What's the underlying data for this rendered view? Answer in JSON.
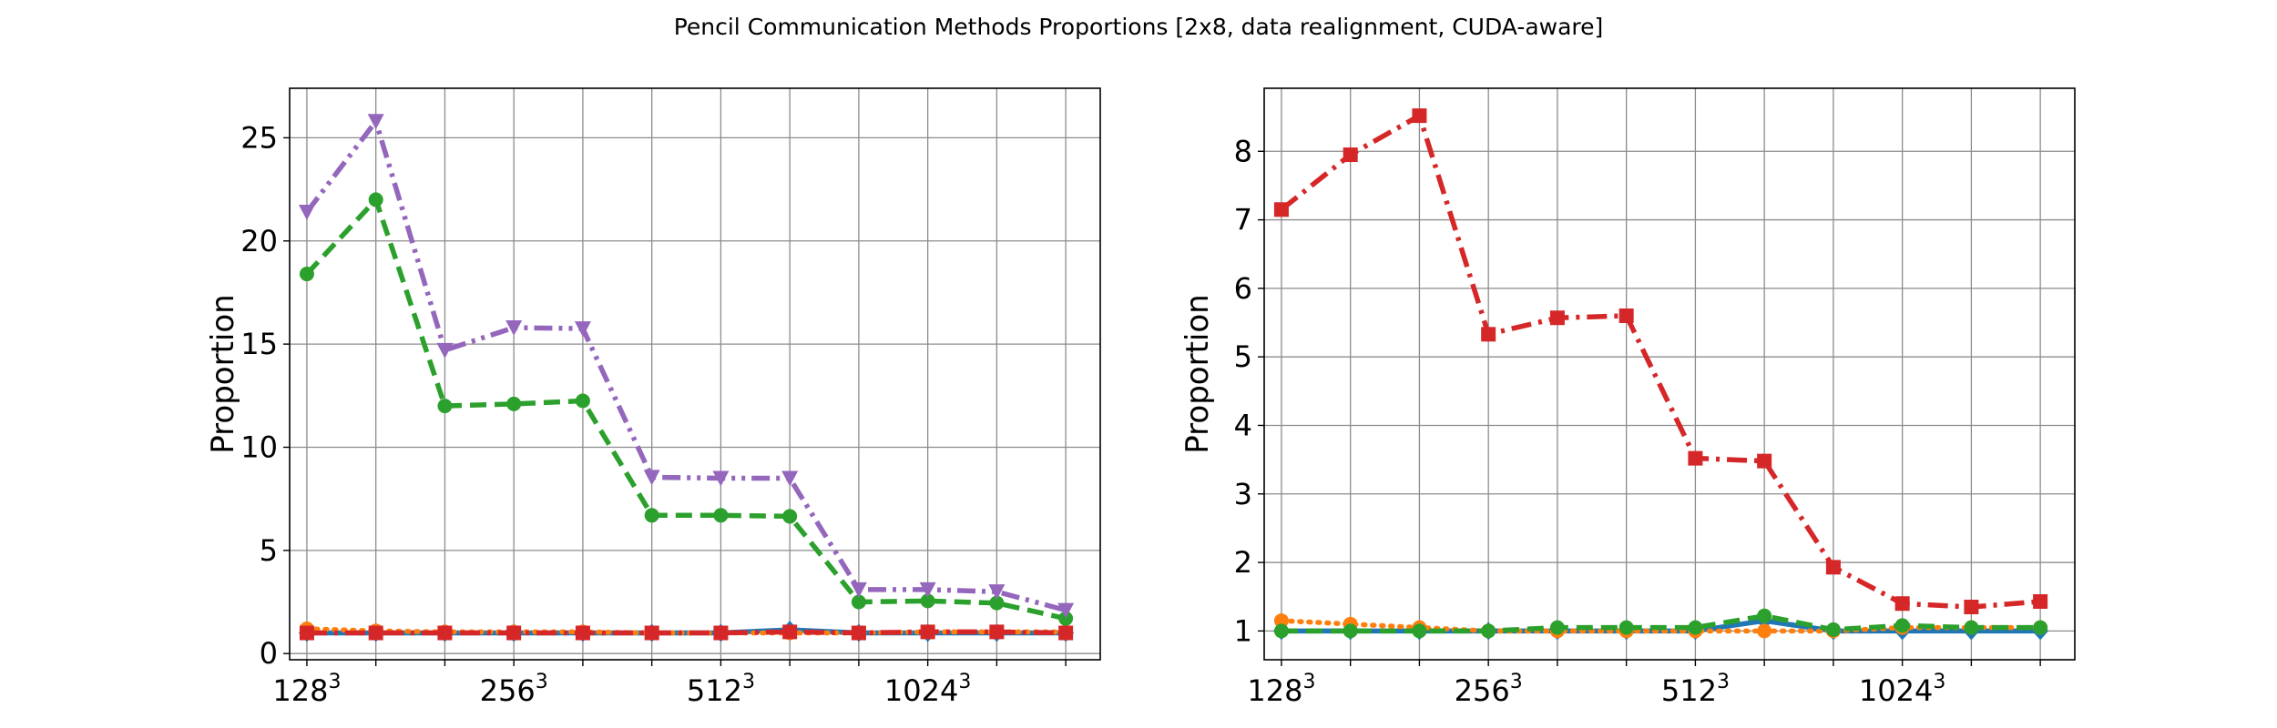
{
  "figure": {
    "title": "Pencil Communication Methods Proportions [2x8, data realignment, CUDA-aware]"
  },
  "chart_data": [
    {
      "type": "line",
      "ylabel": "Proportion",
      "ylim": [
        -0.3,
        27.4
      ],
      "yticks": [
        0,
        5,
        10,
        15,
        20,
        25
      ],
      "grid": true,
      "x": [
        1,
        2,
        3,
        4,
        5,
        6,
        7,
        8,
        9,
        10,
        11,
        12
      ],
      "xlim": [
        0.75,
        12.5
      ],
      "xtick_labels": [
        {
          "x": 1,
          "base": "128",
          "exp": "3"
        },
        {
          "x": 4,
          "base": "256",
          "exp": "3"
        },
        {
          "x": 7,
          "base": "512",
          "exp": "3"
        },
        {
          "x": 10,
          "base": "1024",
          "exp": "3"
        }
      ],
      "series": [
        {
          "color": "#1f77b4",
          "dash": "solid",
          "marker": "diamond",
          "values": [
            1.0,
            1.0,
            1.0,
            1.0,
            1.0,
            1.0,
            1.0,
            1.15,
            1.0,
            1.0,
            1.0,
            1.0
          ]
        },
        {
          "color": "#ff7f0e",
          "dash": "dotted",
          "marker": "circle",
          "values": [
            1.2,
            1.1,
            1.05,
            1.05,
            1.05,
            1.0,
            1.0,
            1.0,
            1.0,
            1.05,
            1.05,
            1.05
          ]
        },
        {
          "color": "#2ca02c",
          "dash": "dashed",
          "marker": "circle",
          "values": [
            18.4,
            22.0,
            12.0,
            12.1,
            12.25,
            6.7,
            6.7,
            6.65,
            2.5,
            2.55,
            2.45,
            1.7
          ]
        },
        {
          "color": "#d62728",
          "dash": "dashdot",
          "marker": "square",
          "values": [
            1.0,
            1.0,
            1.0,
            1.0,
            1.0,
            1.0,
            1.0,
            1.05,
            1.0,
            1.05,
            1.05,
            1.0
          ]
        },
        {
          "color": "#9467bd",
          "dash": "dashdotdot",
          "marker": "triangle-down",
          "values": [
            21.4,
            25.8,
            14.7,
            15.8,
            15.75,
            8.55,
            8.5,
            8.5,
            3.1,
            3.1,
            3.0,
            2.1
          ]
        }
      ]
    },
    {
      "type": "line",
      "ylabel": "Proportion",
      "ylim": [
        0.58,
        8.92
      ],
      "yticks": [
        1,
        2,
        3,
        4,
        5,
        6,
        7,
        8
      ],
      "grid": true,
      "x": [
        1,
        2,
        3,
        4,
        5,
        6,
        7,
        8,
        9,
        10,
        11,
        12
      ],
      "xlim": [
        0.75,
        12.5
      ],
      "xtick_labels": [
        {
          "x": 1,
          "base": "128",
          "exp": "3"
        },
        {
          "x": 4,
          "base": "256",
          "exp": "3"
        },
        {
          "x": 7,
          "base": "512",
          "exp": "3"
        },
        {
          "x": 10,
          "base": "1024",
          "exp": "3"
        }
      ],
      "series": [
        {
          "color": "#1f77b4",
          "dash": "solid",
          "marker": "diamond",
          "values": [
            1.0,
            1.0,
            1.0,
            1.0,
            1.0,
            1.0,
            1.0,
            1.15,
            1.0,
            1.0,
            1.0,
            1.0
          ]
        },
        {
          "color": "#ff7f0e",
          "dash": "dotted",
          "marker": "circle",
          "values": [
            1.15,
            1.1,
            1.05,
            1.0,
            1.0,
            1.0,
            1.0,
            1.0,
            1.0,
            1.05,
            1.05,
            1.05
          ]
        },
        {
          "color": "#2ca02c",
          "dash": "dashed",
          "marker": "circle",
          "values": [
            1.0,
            1.0,
            1.0,
            1.0,
            1.05,
            1.05,
            1.05,
            1.22,
            1.02,
            1.08,
            1.05,
            1.05
          ]
        },
        {
          "color": "#d62728",
          "dash": "dashdot",
          "marker": "square",
          "values": [
            7.15,
            7.95,
            8.52,
            5.33,
            5.57,
            5.6,
            3.52,
            3.48,
            1.93,
            1.4,
            1.35,
            1.43
          ]
        }
      ]
    }
  ]
}
